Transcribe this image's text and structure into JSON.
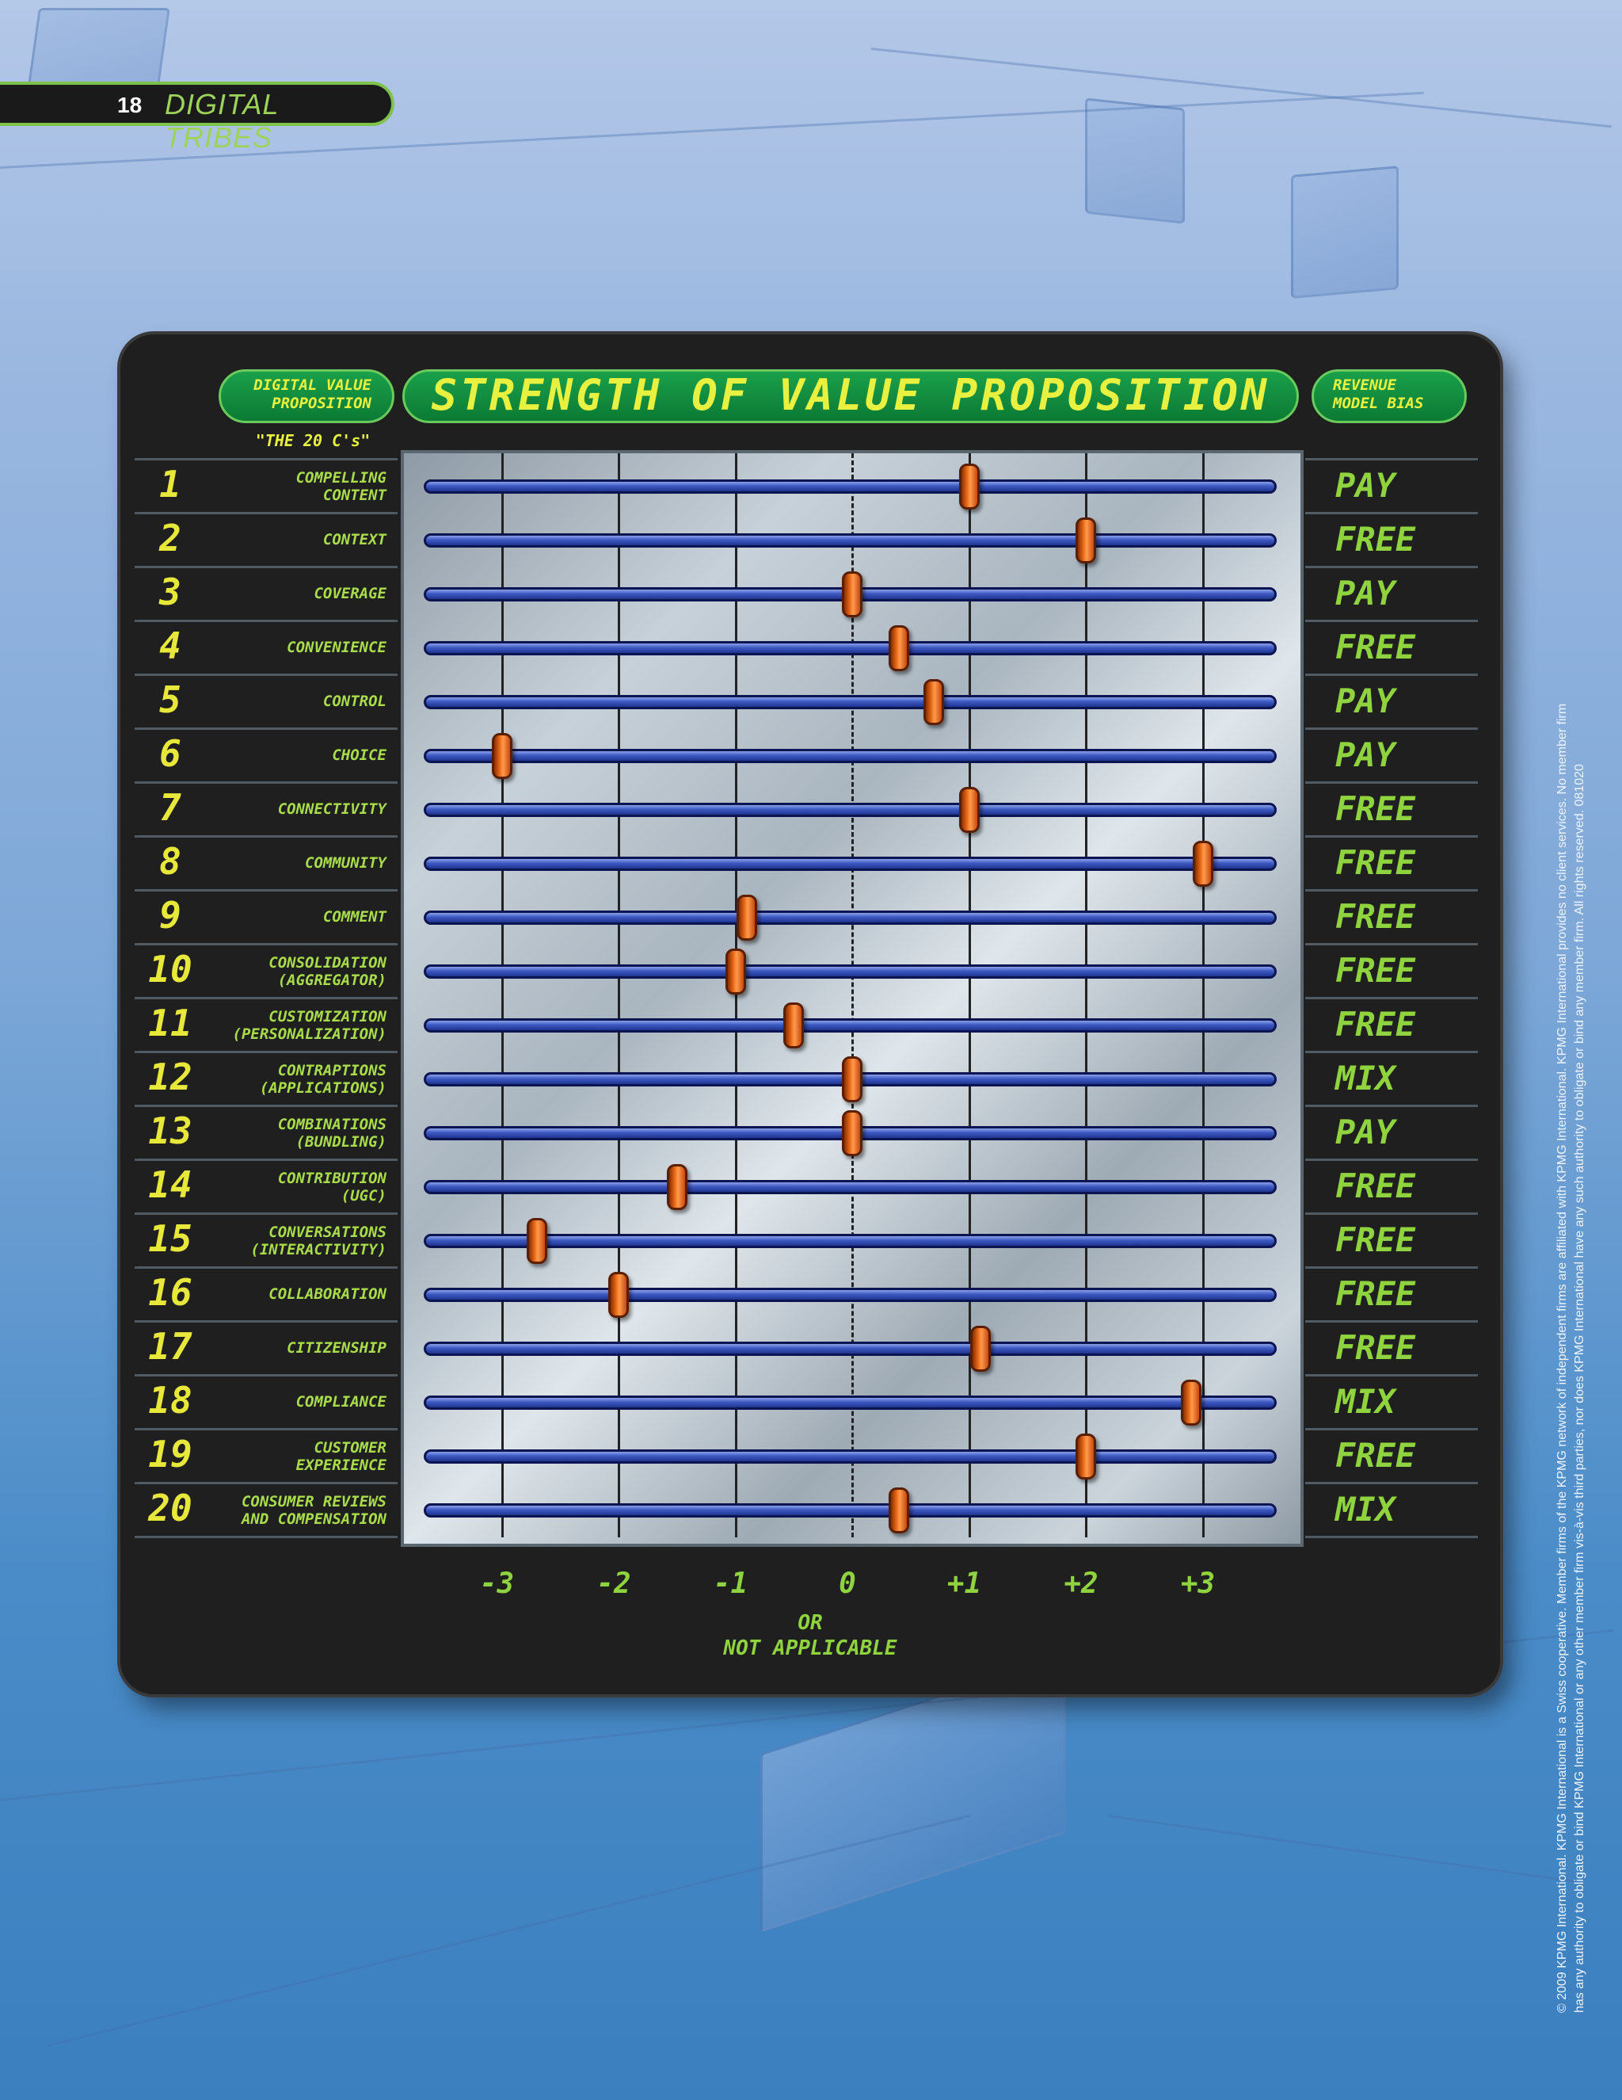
{
  "header": {
    "page_number": "18",
    "title": "DIGITAL TRIBES"
  },
  "legend": {
    "left_pill": [
      "DIGITAL VALUE",
      "PROPOSITION"
    ],
    "title": "STRENGTH OF VALUE PROPOSITION",
    "right_pill": [
      "REVENUE",
      "MODEL BIAS"
    ],
    "subhead": "\"THE 20 C's\""
  },
  "chart_data": {
    "type": "scatter",
    "title": "STRENGTH OF VALUE PROPOSITION",
    "xlim": [
      -3.75,
      3.55
    ],
    "x_ticks": [
      -3,
      -2,
      -1,
      0,
      1,
      2,
      3
    ],
    "x_tick_labels": [
      "-3",
      "-2",
      "-1",
      "0",
      "+1",
      "+2",
      "+3"
    ],
    "x_note": [
      "OR",
      "NOT APPLICABLE"
    ],
    "rows": [
      {
        "num": "1",
        "label": [
          "COMPELLING",
          "CONTENT"
        ],
        "value": 1.0,
        "bias": "PAY"
      },
      {
        "num": "2",
        "label": [
          "CONTEXT"
        ],
        "value": 2.0,
        "bias": "FREE"
      },
      {
        "num": "3",
        "label": [
          "COVERAGE"
        ],
        "value": 0.0,
        "bias": "PAY"
      },
      {
        "num": "4",
        "label": [
          "CONVENIENCE"
        ],
        "value": 0.4,
        "bias": "FREE"
      },
      {
        "num": "5",
        "label": [
          "CONTROL"
        ],
        "value": 0.7,
        "bias": "PAY"
      },
      {
        "num": "6",
        "label": [
          "CHOICE"
        ],
        "value": -3.0,
        "bias": "PAY"
      },
      {
        "num": "7",
        "label": [
          "CONNECTIVITY"
        ],
        "value": 1.0,
        "bias": "FREE"
      },
      {
        "num": "8",
        "label": [
          "COMMUNITY"
        ],
        "value": 3.0,
        "bias": "FREE"
      },
      {
        "num": "9",
        "label": [
          "COMMENT"
        ],
        "value": -0.9,
        "bias": "FREE"
      },
      {
        "num": "10",
        "label": [
          "CONSOLIDATION",
          "(AGGREGATOR)"
        ],
        "value": -1.0,
        "bias": "FREE"
      },
      {
        "num": "11",
        "label": [
          "CUSTOMIZATION",
          "(PERSONALIZATION)"
        ],
        "value": -0.5,
        "bias": "FREE"
      },
      {
        "num": "12",
        "label": [
          "CONTRAPTIONS",
          "(APPLICATIONS)"
        ],
        "value": 0.0,
        "bias": "MIX"
      },
      {
        "num": "13",
        "label": [
          "COMBINATIONS",
          "(BUNDLING)"
        ],
        "value": 0.0,
        "bias": "PAY"
      },
      {
        "num": "14",
        "label": [
          "CONTRIBUTION",
          "(UGC)"
        ],
        "value": -1.5,
        "bias": "FREE"
      },
      {
        "num": "15",
        "label": [
          "CONVERSATIONS",
          "(INTERACTIVITY)"
        ],
        "value": -2.7,
        "bias": "FREE"
      },
      {
        "num": "16",
        "label": [
          "COLLABORATION"
        ],
        "value": -2.0,
        "bias": "FREE"
      },
      {
        "num": "17",
        "label": [
          "CITIZENSHIP"
        ],
        "value": 1.1,
        "bias": "FREE"
      },
      {
        "num": "18",
        "label": [
          "COMPLIANCE"
        ],
        "value": 2.9,
        "bias": "MIX"
      },
      {
        "num": "19",
        "label": [
          "CUSTOMER",
          "EXPERIENCE"
        ],
        "value": 2.0,
        "bias": "FREE"
      },
      {
        "num": "20",
        "label": [
          "CONSUMER REVIEWS",
          "AND COMPENSATION"
        ],
        "value": 0.4,
        "bias": "MIX"
      }
    ]
  },
  "footer": {
    "copyright_lines": [
      "© 2009 KPMG International. KPMG International is a Swiss cooperative. Member firms of the KPMG network of independent firms are affiliated with KPMG International. KPMG International provides no client services. No member firm",
      "has any authority to obligate or bind KPMG International or any other member firm vis-à-vis third parties, nor does KPMG International have any such authority to obligate or bind any member firm. All rights reserved. 081020"
    ]
  }
}
